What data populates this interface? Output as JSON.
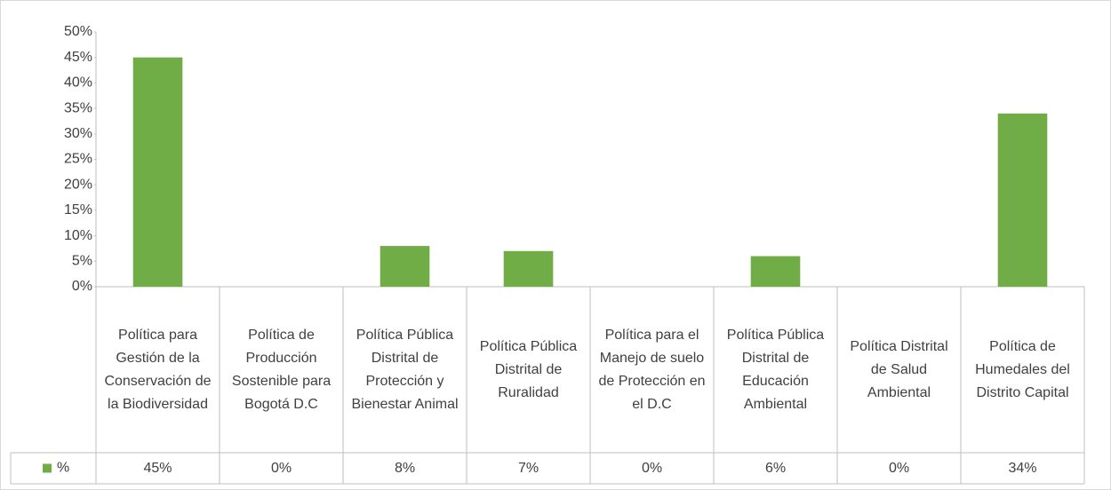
{
  "chart_data": {
    "type": "bar",
    "categories": [
      "Política para Gestión de la Conservación de la Biodiversidad",
      "Política de Producción Sostenible para Bogotá D.C",
      "Política Pública Distrital de Protección y Bienestar Animal",
      "Política Pública Distrital de Ruralidad",
      "Política para el Manejo de suelo de Protección en el D.C",
      "Política Pública Distrital de Educación Ambiental",
      "Política Distrital de Salud Ambiental",
      "Política de Humedales del Distrito Capital"
    ],
    "series": [
      {
        "name": "%",
        "color": "#70ad47",
        "values": [
          45,
          0,
          8,
          7,
          0,
          6,
          0,
          34
        ],
        "value_labels": [
          "45%",
          "0%",
          "8%",
          "7%",
          "0%",
          "6%",
          "0%",
          "34%"
        ]
      }
    ],
    "ylim": [
      0,
      50
    ],
    "yticks": [
      {
        "value": 0,
        "label": "0%"
      },
      {
        "value": 5,
        "label": "5%"
      },
      {
        "value": 10,
        "label": "10%"
      },
      {
        "value": 15,
        "label": "15%"
      },
      {
        "value": 20,
        "label": "20%"
      },
      {
        "value": 25,
        "label": "25%"
      },
      {
        "value": 30,
        "label": "30%"
      },
      {
        "value": 35,
        "label": "35%"
      },
      {
        "value": 40,
        "label": "40%"
      },
      {
        "value": 45,
        "label": "45%"
      },
      {
        "value": 50,
        "label": "50%"
      }
    ]
  }
}
